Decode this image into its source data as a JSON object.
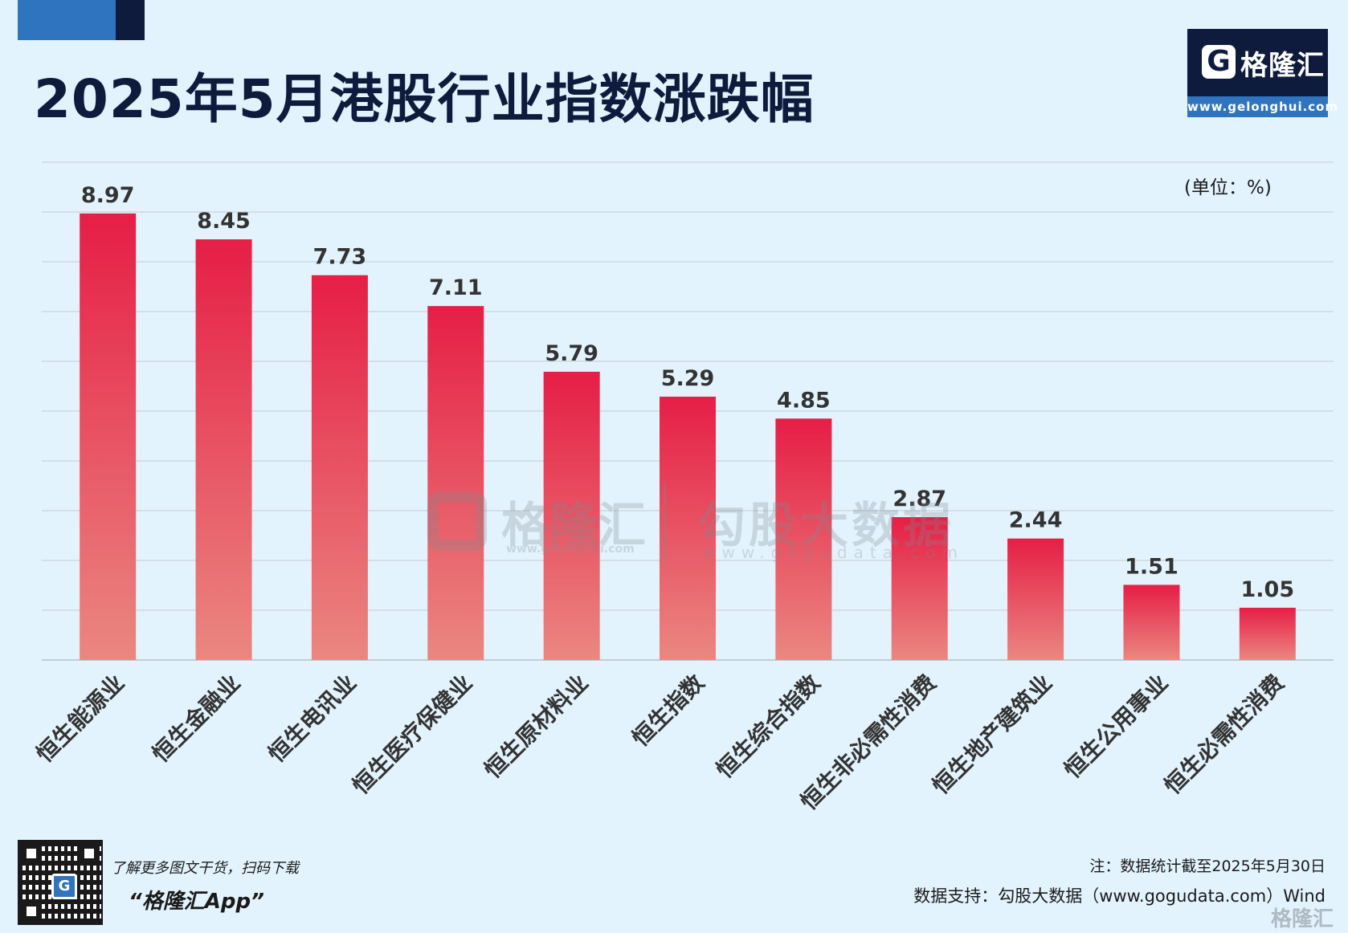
{
  "header": {
    "title": "2025年5月港股行业指数涨跌幅",
    "logo_name": "格隆汇",
    "logo_url": "www.gelonghui.com"
  },
  "unit_label": "(单位：%)",
  "watermarks": {
    "gelonghui_name": "格隆汇",
    "gelonghui_url": "www.gelonghui.com",
    "gogudata_name": "勾股大数据",
    "gogudata_url": "www.gogudata.com",
    "bottom_mark": "格隆汇"
  },
  "footer": {
    "promo_text": "了解更多图文干货，扫码下载",
    "promo_app": "“格隆汇App”",
    "note": "注：数据统计截至2025年5月30日",
    "source": "数据支持：勾股大数据（www.gogudata.com）Wind"
  },
  "colors": {
    "bar_top": "#e61e46",
    "bar_bottom": "#ea8780",
    "navy": "#0e1b3d",
    "blue": "#2f74be",
    "background": "#e3f3fd"
  },
  "chart_data": {
    "type": "bar",
    "title": "2025年5月港股行业指数涨跌幅",
    "categories": [
      "恒生能源业",
      "恒生金融业",
      "恒生电讯业",
      "恒生医疗保健业",
      "恒生原材料业",
      "恒生指数",
      "恒生综合指数",
      "恒生非必需性消费",
      "恒生地产建筑业",
      "恒生公用事业",
      "恒生必需性消费"
    ],
    "values": [
      8.97,
      8.45,
      7.73,
      7.11,
      5.79,
      5.29,
      4.85,
      2.87,
      2.44,
      1.51,
      1.05
    ],
    "ylim": [
      0,
      10
    ],
    "grid": true,
    "xlabel": "",
    "ylabel": ""
  }
}
